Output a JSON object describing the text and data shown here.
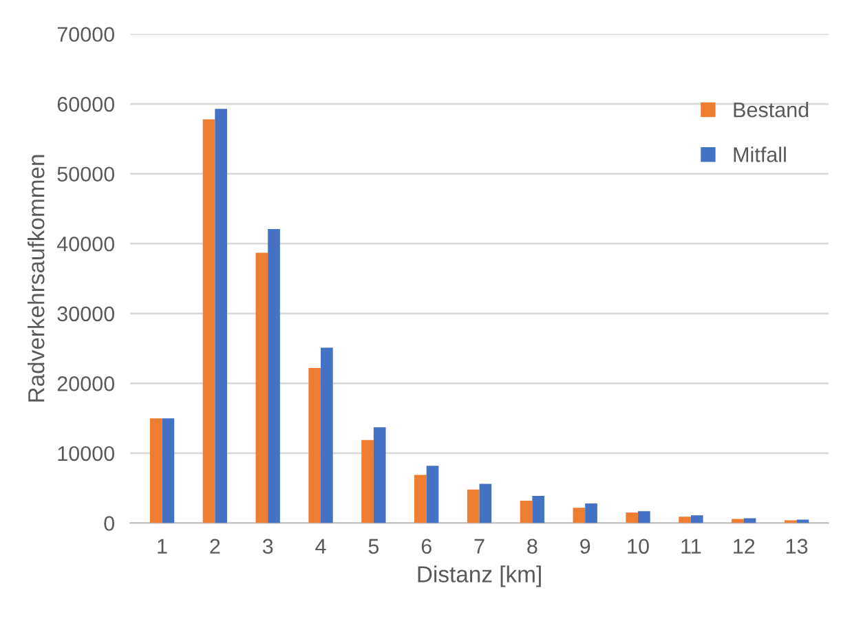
{
  "chart_data": {
    "type": "bar",
    "xlabel": "Distanz [km]",
    "ylabel": "Radverkehrsaufkommen",
    "categories": [
      "1",
      "2",
      "3",
      "4",
      "5",
      "6",
      "7",
      "8",
      "9",
      "10",
      "11",
      "12",
      "13"
    ],
    "series": [
      {
        "name": "Bestand",
        "color": "#ed7d31",
        "values": [
          15000,
          57800,
          38700,
          22200,
          11900,
          6900,
          4800,
          3200,
          2200,
          1500,
          900,
          600,
          400
        ]
      },
      {
        "name": "Mitfall",
        "color": "#4472c4",
        "values": [
          15000,
          59300,
          42100,
          25100,
          13700,
          8200,
          5600,
          3900,
          2800,
          1700,
          1100,
          700,
          500
        ]
      }
    ],
    "ylim": [
      0,
      70000
    ],
    "yticks": [
      0,
      10000,
      20000,
      30000,
      40000,
      50000,
      60000,
      70000
    ],
    "grid": "y",
    "legend": "top right"
  }
}
